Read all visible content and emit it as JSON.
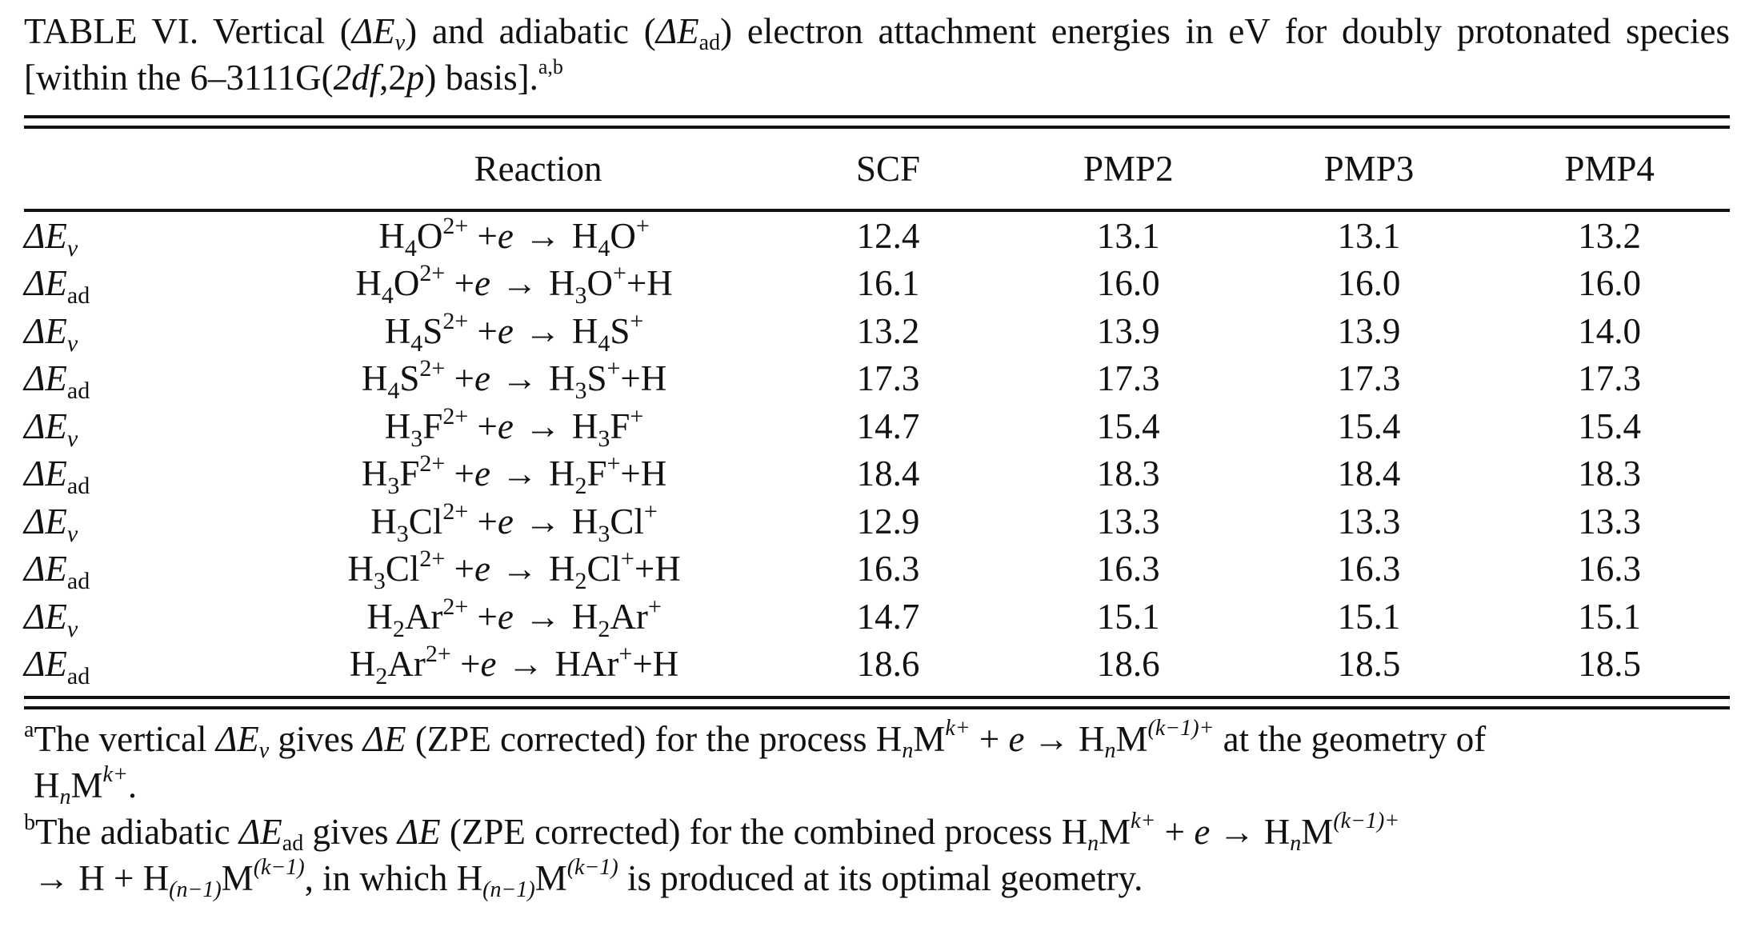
{
  "caption": {
    "label": "TABLE VI.",
    "text_1": "Vertical (",
    "dEv_delta": "ΔE",
    "dEv_sub": "v",
    "text_2": ") and adiabatic (",
    "dEad_delta": "ΔE",
    "dEad_sub": "ad",
    "text_3": ") electron attachment energies in eV for doubly protonated species [within the 6–3111G(",
    "basis_italic_1": "2df",
    "basis_sep": ",2",
    "basis_italic_2": "p",
    "text_4": ") basis].",
    "footnote_refs": "a,b"
  },
  "table": {
    "headers": [
      "",
      "Reaction",
      "SCF",
      "PMP2",
      "PMP3",
      "PMP4"
    ],
    "rows": [
      {
        "label_main": "ΔE",
        "label_sub": "v",
        "reactant": "H",
        "reactant_n": "4",
        "reactant_el": "O",
        "reactant_charge": "2+",
        "electron": "e",
        "arrow": "→",
        "product": "H",
        "product_n": "4",
        "product_el": "O",
        "product_charge": "+",
        "extra": "",
        "values": [
          "12.4",
          "13.1",
          "13.1",
          "13.2"
        ]
      },
      {
        "label_main": "ΔE",
        "label_sub": "ad",
        "reactant": "H",
        "reactant_n": "4",
        "reactant_el": "O",
        "reactant_charge": "2+",
        "electron": "e",
        "arrow": "→",
        "product": "H",
        "product_n": "3",
        "product_el": "O",
        "product_charge": "+",
        "extra": "+H",
        "values": [
          "16.1",
          "16.0",
          "16.0",
          "16.0"
        ]
      },
      {
        "label_main": "ΔE",
        "label_sub": "v",
        "reactant": "H",
        "reactant_n": "4",
        "reactant_el": "S",
        "reactant_charge": "2+",
        "electron": "e",
        "arrow": "→",
        "product": "H",
        "product_n": "4",
        "product_el": "S",
        "product_charge": "+",
        "extra": "",
        "values": [
          "13.2",
          "13.9",
          "13.9",
          "14.0"
        ]
      },
      {
        "label_main": "ΔE",
        "label_sub": "ad",
        "reactant": "H",
        "reactant_n": "4",
        "reactant_el": "S",
        "reactant_charge": "2+",
        "electron": "e",
        "arrow": "→",
        "product": "H",
        "product_n": "3",
        "product_el": "S",
        "product_charge": "+",
        "extra": "+H",
        "values": [
          "17.3",
          "17.3",
          "17.3",
          "17.3"
        ]
      },
      {
        "label_main": "ΔE",
        "label_sub": "v",
        "reactant": "H",
        "reactant_n": "3",
        "reactant_el": "F",
        "reactant_charge": "2+",
        "electron": "e",
        "arrow": "→",
        "product": "H",
        "product_n": "3",
        "product_el": "F",
        "product_charge": "+",
        "extra": "",
        "values": [
          "14.7",
          "15.4",
          "15.4",
          "15.4"
        ]
      },
      {
        "label_main": "ΔE",
        "label_sub": "ad",
        "reactant": "H",
        "reactant_n": "3",
        "reactant_el": "F",
        "reactant_charge": "2+",
        "electron": "e",
        "arrow": "→",
        "product": "H",
        "product_n": "2",
        "product_el": "F",
        "product_charge": "+",
        "extra": "+H",
        "values": [
          "18.4",
          "18.3",
          "18.4",
          "18.3"
        ]
      },
      {
        "label_main": "ΔE",
        "label_sub": "v",
        "reactant": "H",
        "reactant_n": "3",
        "reactant_el": "Cl",
        "reactant_charge": "2+",
        "electron": "e",
        "arrow": "→",
        "product": "H",
        "product_n": "3",
        "product_el": "Cl",
        "product_charge": "+",
        "extra": "",
        "values": [
          "12.9",
          "13.3",
          "13.3",
          "13.3"
        ]
      },
      {
        "label_main": "ΔE",
        "label_sub": "ad",
        "reactant": "H",
        "reactant_n": "3",
        "reactant_el": "Cl",
        "reactant_charge": "2+",
        "electron": "e",
        "arrow": "→",
        "product": "H",
        "product_n": "2",
        "product_el": "Cl",
        "product_charge": "+",
        "extra": "+H",
        "values": [
          "16.3",
          "16.3",
          "16.3",
          "16.3"
        ]
      },
      {
        "label_main": "ΔE",
        "label_sub": "v",
        "reactant": "H",
        "reactant_n": "2",
        "reactant_el": "Ar",
        "reactant_charge": "2+",
        "electron": "e",
        "arrow": "→",
        "product": "H",
        "product_n": "2",
        "product_el": "Ar",
        "product_charge": "+",
        "extra": "",
        "values": [
          "14.7",
          "15.1",
          "15.1",
          "15.1"
        ]
      },
      {
        "label_main": "ΔE",
        "label_sub": "ad",
        "reactant": "H",
        "reactant_n": "2",
        "reactant_el": "Ar",
        "reactant_charge": "2+",
        "electron": "e",
        "arrow": "→",
        "product": "H",
        "product_n": "",
        "product_el": "Ar",
        "product_charge": "+",
        "extra": "+H",
        "values": [
          "18.6",
          "18.6",
          "18.5",
          "18.5"
        ]
      }
    ]
  },
  "footnotes": {
    "a": {
      "mark": "a",
      "t1": "The vertical ",
      "dE": "ΔE",
      "dE_sub": "v",
      "t2": " gives ",
      "dE2": "ΔE",
      "t3": " (ZPE corrected) for the process H",
      "n1": "n",
      "m1": "M",
      "k1": "k+",
      "t4": " + ",
      "e": "e",
      "arrow": "→",
      "t5": " H",
      "n2": "n",
      "m2": "M",
      "k2": "(k−1)+",
      "t6": " at the geometry of",
      "line2_h": "H",
      "line2_n": "n",
      "line2_m": "M",
      "line2_k": "k+",
      "line2_end": "."
    },
    "b": {
      "mark": "b",
      "t1": "The adiabatic ",
      "dE": "ΔE",
      "dE_sub": "ad",
      "t2": " gives ",
      "dE2": "ΔE",
      "t3": " (ZPE corrected) for the combined process H",
      "n1": "n",
      "m1": "M",
      "k1": "k+",
      "t4": " + ",
      "e": "e",
      "arrow": "→",
      "t5": " H",
      "n2": "n",
      "m2": "M",
      "k2": "(k−1)+",
      "line2_arrow": "→",
      "line2_a": " H + H",
      "line2_sub1": "(n−1)",
      "line2_m1": "M",
      "line2_sup1": "(k−1)",
      "line2_b": ", in which H",
      "line2_sub2": "(n−1)",
      "line2_m2": "M",
      "line2_sup2": "(k−1)",
      "line2_c": " is produced at its optimal geometry."
    }
  }
}
